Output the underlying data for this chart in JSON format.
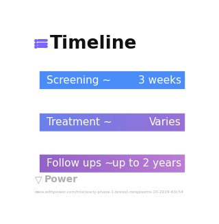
{
  "title": "Timeline",
  "title_icon_color": "#7B61FF",
  "background_color": "#ffffff",
  "rows": [
    {
      "label": "Screening ~",
      "value": "3 weeks",
      "color_left": "#4D8FF0",
      "color_right": "#4D8FF0"
    },
    {
      "label": "Treatment ~",
      "value": "Varies",
      "color_left": "#6B82E8",
      "color_right": "#9B72D4"
    },
    {
      "label": "Follow ups ~",
      "value": "up to 2 years",
      "color_left": "#9966CC",
      "color_right": "#BB77CC"
    }
  ],
  "footer_text": "Power",
  "footer_url": "www.withpower.com/trial/early-phase-1-breast-neoplasms-10-2019-63c54",
  "footer_color": "#b0b0b0"
}
